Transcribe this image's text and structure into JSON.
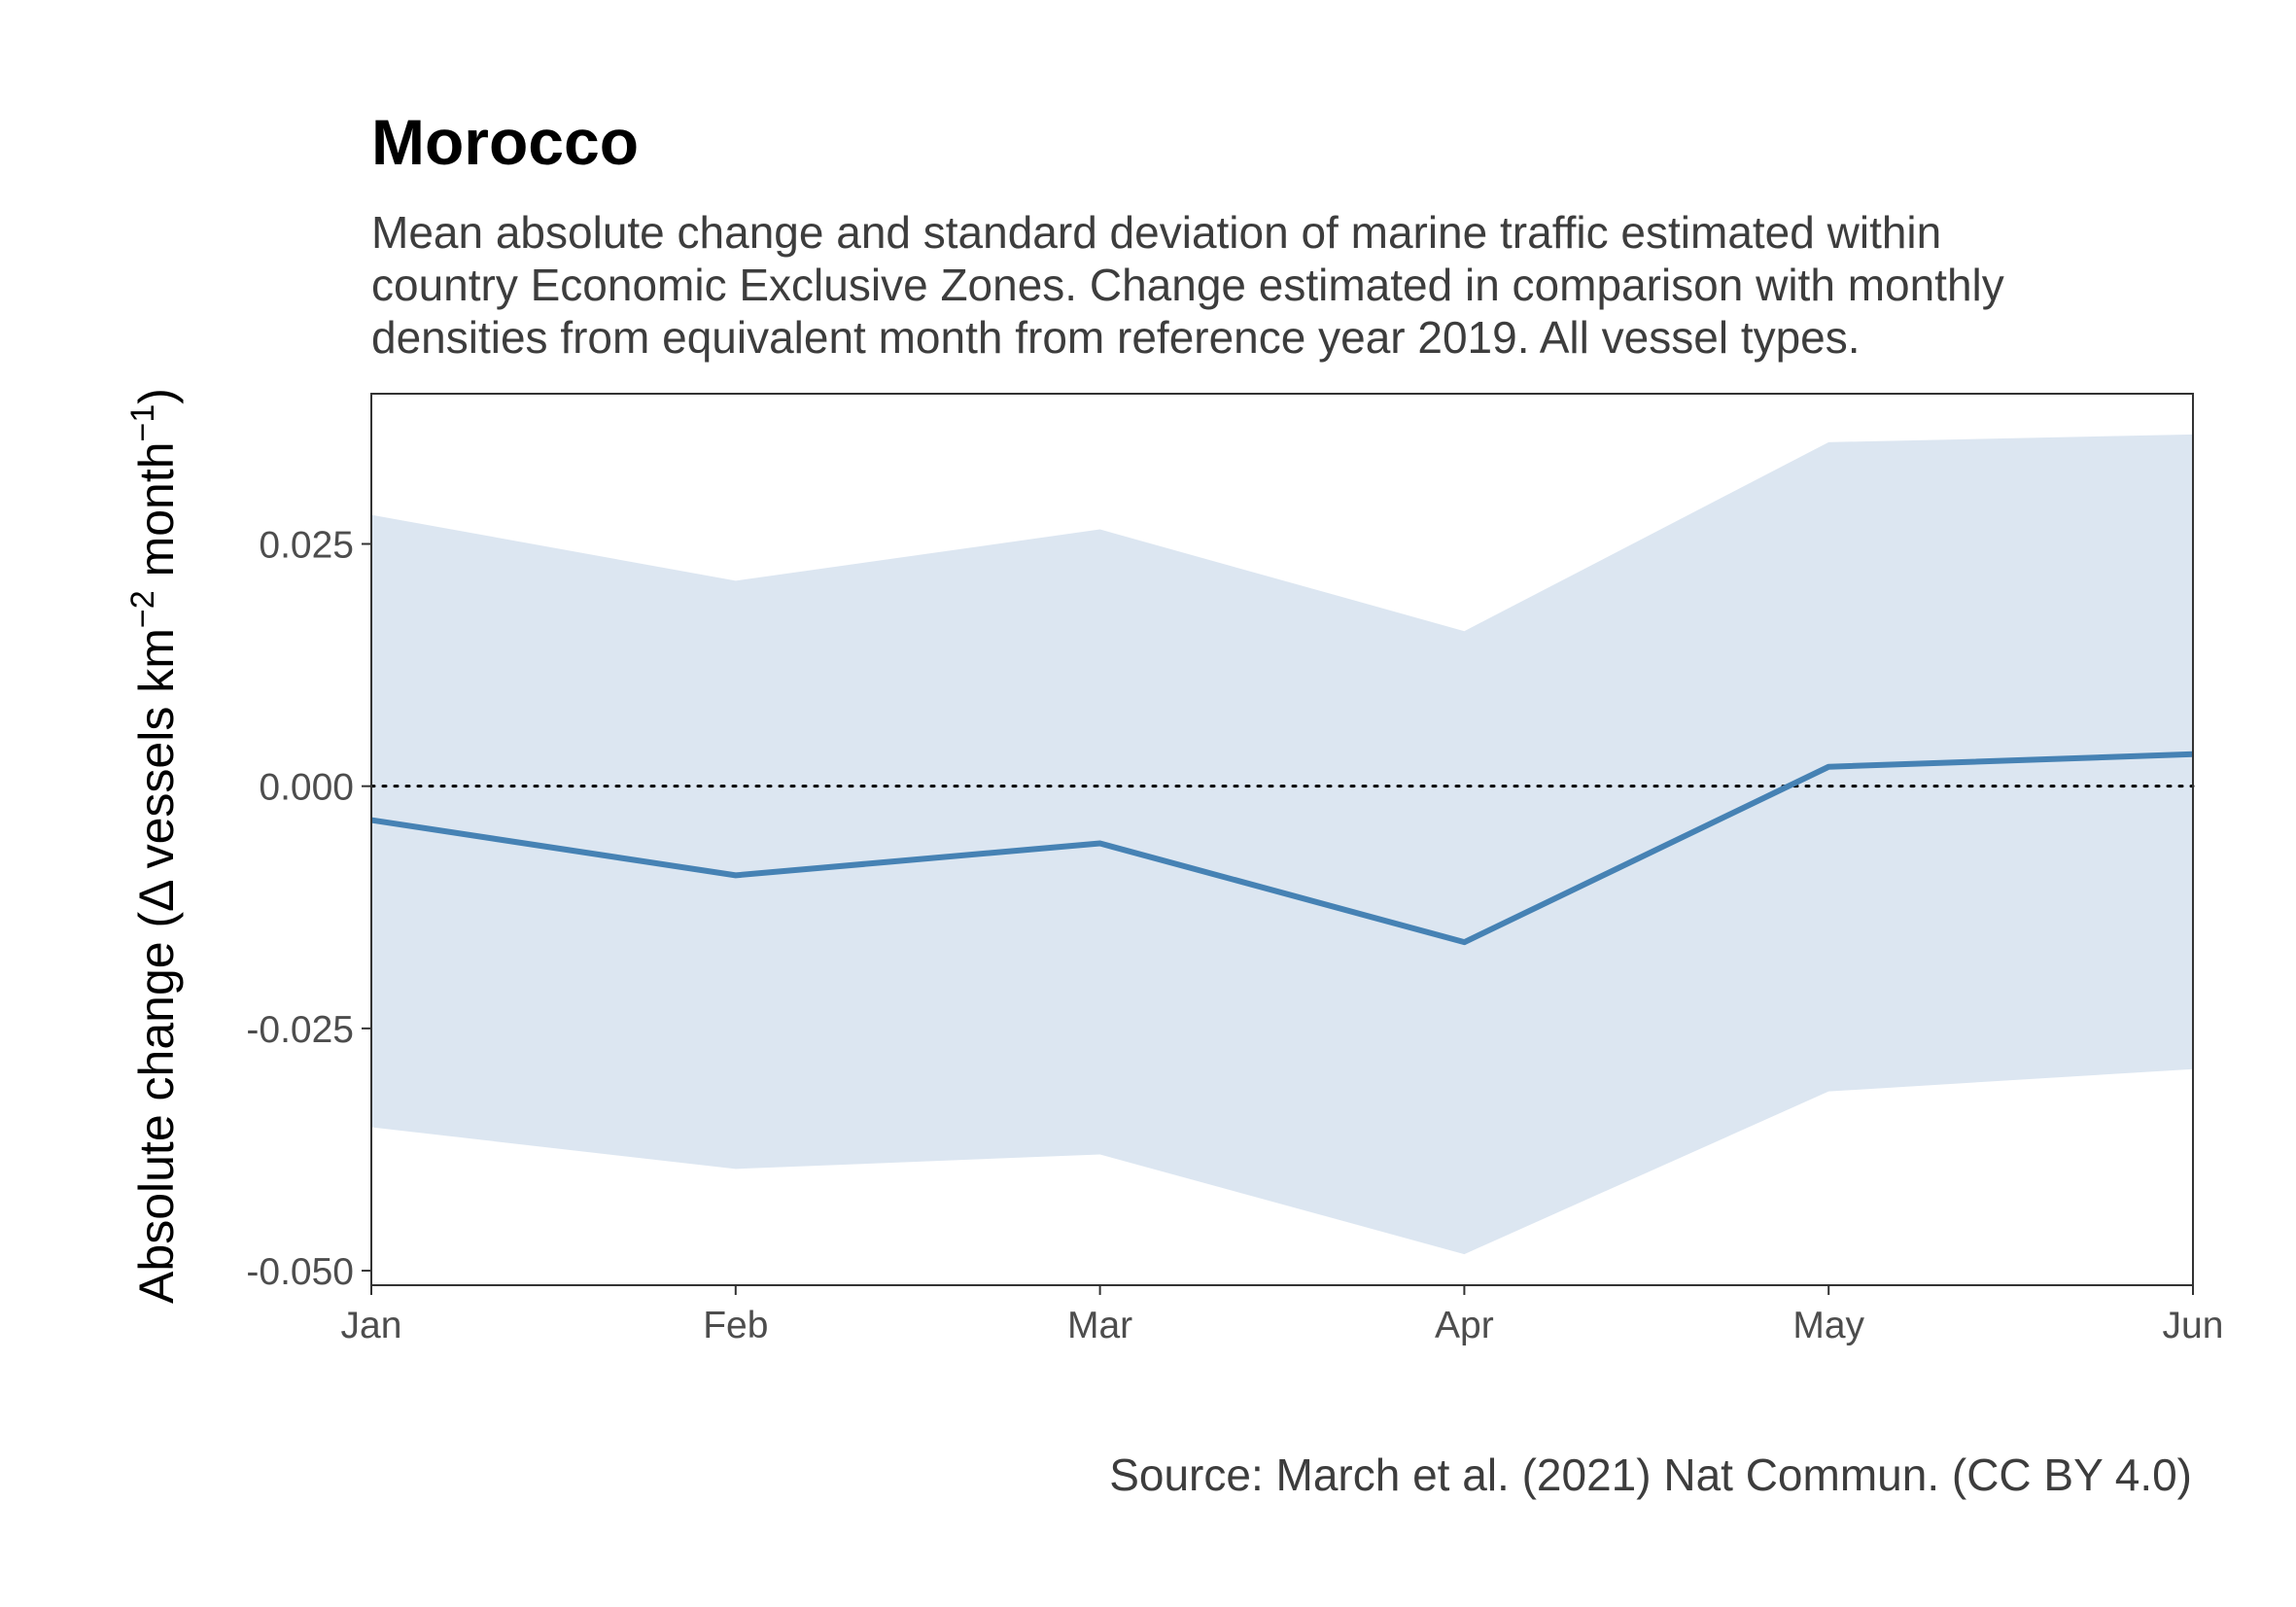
{
  "title": "Morocco",
  "subtitle_lines": [
    "Mean absolute change and standard deviation of marine traffic estimated within",
    "country Economic Exclusive Zones. Change estimated in comparison with monthly",
    "densities from equivalent month from reference year 2019. All vessel types."
  ],
  "caption": "Source: March et al. (2021) Nat Commun. (CC BY 4.0)",
  "chart_data": {
    "type": "line",
    "ylabel": "Absolute change (Δ vessels km⁻² month⁻¹)",
    "ylabel_parts": {
      "main": "Absolute change (Δ vessels km",
      "sup1": "−2",
      "mid": " month",
      "sup2": "−1",
      "end": ")"
    },
    "categories": [
      "Jan",
      "Feb",
      "Mar",
      "Apr",
      "May",
      "Jun"
    ],
    "series": [
      {
        "values": [
          -0.0035,
          -0.0092,
          -0.0059,
          -0.0161,
          0.002,
          0.0033
        ],
        "upper": [
          0.028,
          0.0212,
          0.0265,
          0.016,
          0.0355,
          0.0363
        ],
        "lower": [
          -0.0352,
          -0.0395,
          -0.038,
          -0.0483,
          -0.0315,
          -0.0292
        ]
      }
    ],
    "ylim": [
      -0.0515,
      0.0405
    ],
    "yticks": [
      -0.05,
      -0.025,
      0.0,
      0.025
    ],
    "ytick_labels": [
      "-0.050",
      "-0.025",
      "0.000",
      "0.025"
    ],
    "reference_line": 0.0,
    "grid": false,
    "colors": {
      "line": "#4682b4",
      "band": "#dce6f1",
      "reference": "#000000",
      "frame": "#333333"
    }
  }
}
